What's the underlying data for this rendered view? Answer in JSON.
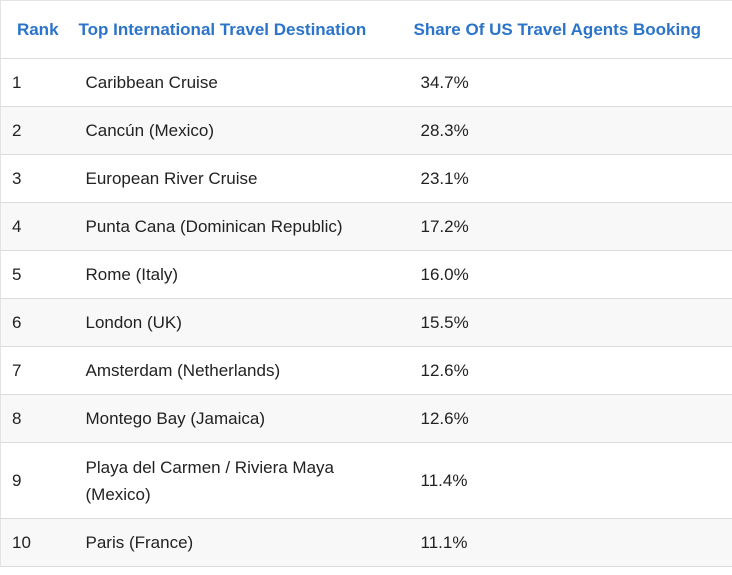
{
  "table": {
    "columns": [
      "Rank",
      "Top International Travel Destination",
      "Share Of US Travel Agents Booking"
    ],
    "rows": [
      [
        "1",
        "Caribbean Cruise",
        "34.7%"
      ],
      [
        "2",
        "Cancún (Mexico)",
        "28.3%"
      ],
      [
        "3",
        "European River Cruise",
        "23.1%"
      ],
      [
        "4",
        "Punta Cana (Dominican Republic)",
        "17.2%"
      ],
      [
        "5",
        "Rome (Italy)",
        "16.0%"
      ],
      [
        "6",
        "London (UK)",
        "15.5%"
      ],
      [
        "7",
        "Amsterdam (Netherlands)",
        "12.6%"
      ],
      [
        "8",
        "Montego Bay (Jamaica)",
        "12.6%"
      ],
      [
        "9",
        "Playa del Carmen / Riviera Maya (Mexico)",
        "11.4%"
      ],
      [
        "10",
        "Paris (France)",
        "11.1%"
      ]
    ]
  }
}
